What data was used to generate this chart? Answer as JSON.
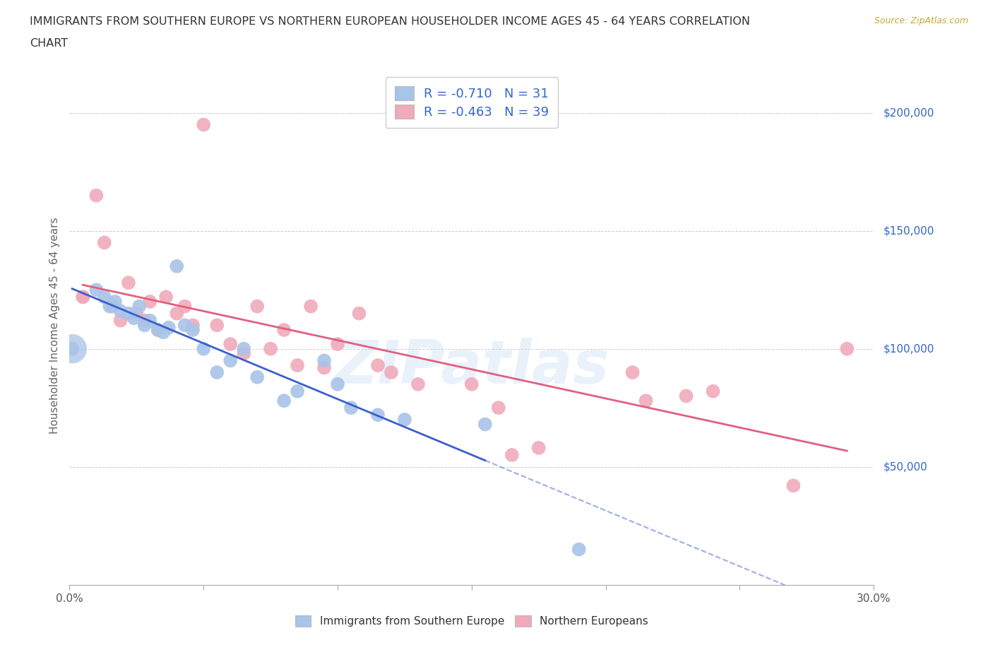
{
  "title_line1": "IMMIGRANTS FROM SOUTHERN EUROPE VS NORTHERN EUROPEAN HOUSEHOLDER INCOME AGES 45 - 64 YEARS CORRELATION",
  "title_line2": "CHART",
  "source_text": "Source: ZipAtlas.com",
  "ylabel": "Householder Income Ages 45 - 64 years",
  "xlim": [
    0.0,
    0.3
  ],
  "ylim": [
    0,
    220000
  ],
  "xtick_vals": [
    0.0,
    0.05,
    0.1,
    0.15,
    0.2,
    0.25,
    0.3
  ],
  "xtick_labels": [
    "0.0%",
    "",
    "",
    "",
    "",
    "",
    "30.0%"
  ],
  "ytick_vals": [
    0,
    50000,
    100000,
    150000,
    200000
  ],
  "ytick_labels": [
    "",
    "$50,000",
    "$100,000",
    "$150,000",
    "$200,000"
  ],
  "blue_color": "#a8c4e8",
  "pink_color": "#f0aabb",
  "blue_line_color": "#3a5fcd",
  "pink_line_color": "#e06080",
  "blue_scatter_x": [
    0.001,
    0.01,
    0.013,
    0.015,
    0.017,
    0.019,
    0.022,
    0.024,
    0.026,
    0.028,
    0.03,
    0.033,
    0.035,
    0.037,
    0.04,
    0.043,
    0.046,
    0.05,
    0.055,
    0.06,
    0.065,
    0.07,
    0.08,
    0.085,
    0.095,
    0.1,
    0.105,
    0.115,
    0.125,
    0.155,
    0.19
  ],
  "blue_scatter_y": [
    100000,
    125000,
    122000,
    118000,
    120000,
    116000,
    115000,
    113000,
    118000,
    110000,
    112000,
    108000,
    107000,
    109000,
    135000,
    110000,
    108000,
    100000,
    90000,
    95000,
    100000,
    88000,
    78000,
    82000,
    95000,
    85000,
    75000,
    72000,
    70000,
    68000,
    15000
  ],
  "blue_large_x": [
    0.001
  ],
  "blue_large_y": [
    100000
  ],
  "pink_scatter_x": [
    0.005,
    0.01,
    0.013,
    0.016,
    0.019,
    0.022,
    0.025,
    0.028,
    0.03,
    0.033,
    0.036,
    0.04,
    0.043,
    0.046,
    0.05,
    0.055,
    0.06,
    0.065,
    0.07,
    0.075,
    0.08,
    0.085,
    0.09,
    0.095,
    0.1,
    0.108,
    0.115,
    0.12,
    0.13,
    0.15,
    0.16,
    0.165,
    0.175,
    0.21,
    0.215,
    0.23,
    0.24,
    0.27,
    0.29
  ],
  "pink_scatter_y": [
    122000,
    165000,
    145000,
    118000,
    112000,
    128000,
    115000,
    112000,
    120000,
    108000,
    122000,
    115000,
    118000,
    110000,
    195000,
    110000,
    102000,
    98000,
    118000,
    100000,
    108000,
    93000,
    118000,
    92000,
    102000,
    115000,
    93000,
    90000,
    85000,
    85000,
    75000,
    55000,
    58000,
    90000,
    78000,
    80000,
    82000,
    42000,
    100000
  ],
  "watermark_text": "ZIPatlas",
  "legend_label_blue": "R = -0.710   N = 31",
  "legend_label_pink": "R = -0.463   N = 39",
  "legend_R_color": "#cc2222",
  "legend_N_color": "#3366cc",
  "background_color": "#ffffff",
  "grid_color": "#cccccc",
  "dot_size": 200,
  "large_dot_size": 900
}
